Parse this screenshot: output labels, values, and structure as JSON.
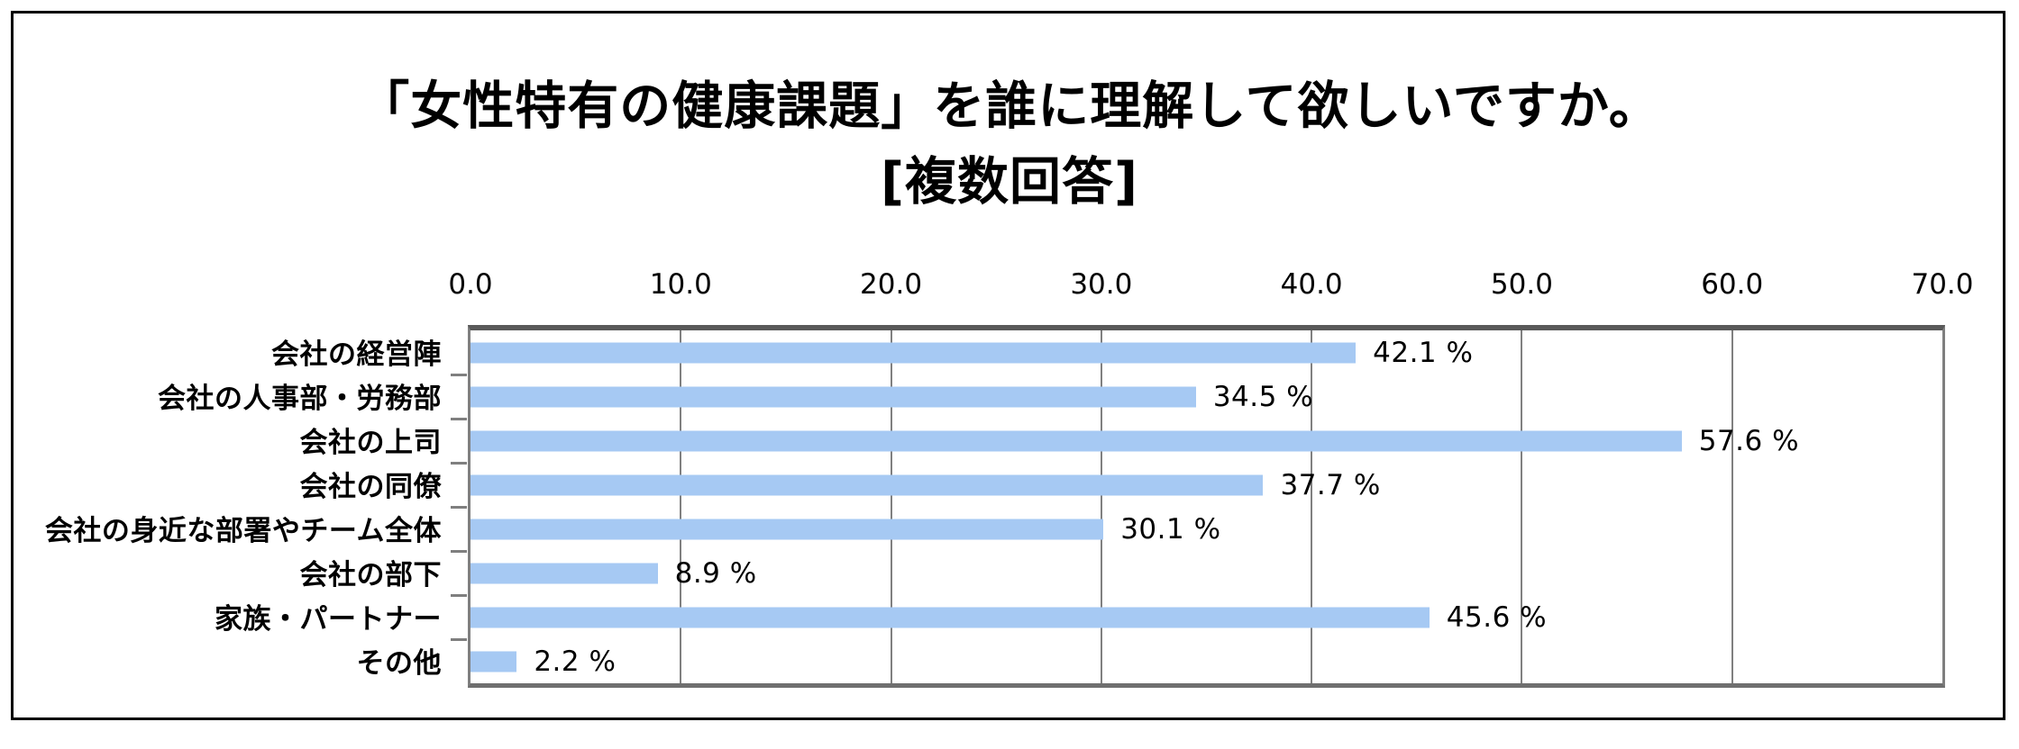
{
  "page": {
    "background": "#ffffff",
    "frame_border_color": "#000000"
  },
  "title": {
    "line1": "「女性特有の健康課題」を誰に理解して欲しいですか。",
    "line2": "[複数回答]"
  },
  "chart_data": {
    "type": "bar",
    "orientation": "horizontal",
    "title": "「女性特有の健康課題」を誰に理解して欲しいですか。[複数回答]",
    "categories": [
      "会社の経営陣",
      "会社の人事部・労務部",
      "会社の上司",
      "会社の同僚",
      "会社の身近な部署やチーム全体",
      "会社の部下",
      "家族・パートナー",
      "その他"
    ],
    "values": [
      42.1,
      34.5,
      57.6,
      37.7,
      30.1,
      8.9,
      45.6,
      2.2
    ],
    "value_labels": [
      "42.1 %",
      "34.5 %",
      "57.6 %",
      "37.7 %",
      "30.1 %",
      "8.9 %",
      "45.6 %",
      "2.2 %"
    ],
    "x_ticks": [
      "0.0",
      "10.0",
      "20.0",
      "30.0",
      "40.0",
      "50.0",
      "60.0",
      "70.0"
    ],
    "xlim": [
      0,
      70
    ],
    "xlabel": "",
    "ylabel": "",
    "grid": true,
    "legend": "none",
    "bar_color": "#A6C9F3",
    "grid_color": "#808080",
    "axis_color": "#7f7f7f",
    "text_color": "#000000"
  }
}
